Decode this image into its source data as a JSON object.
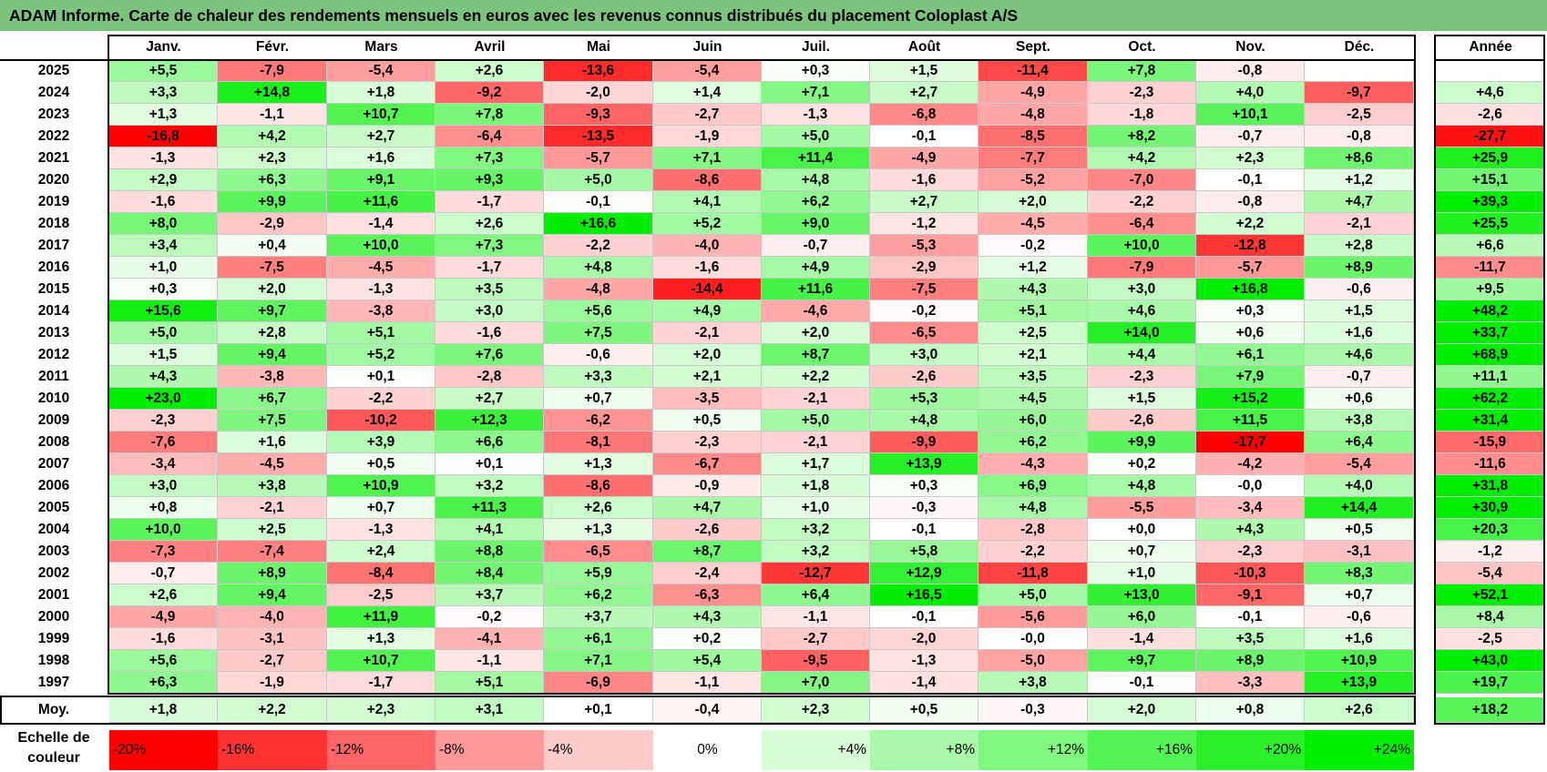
{
  "title": "ADAM Informe. Carte de chaleur des rendements mensuels en euros avec les revenus connus distribués du placement Coloplast A/S",
  "chart_data": {
    "type": "heatmap",
    "title": "ADAM Informe. Carte de chaleur des rendements mensuels en euros avec les revenus connus distribués du placement Coloplast A/S",
    "columns": [
      "Janv.",
      "Févr.",
      "Mars",
      "Avril",
      "Mai",
      "Juin",
      "Juil.",
      "Août",
      "Sept.",
      "Oct.",
      "Nov.",
      "Déc."
    ],
    "year_column_label": "Année",
    "rows": [
      {
        "year": "2025",
        "values": [
          "+5,5",
          "-7,9",
          "-5,4",
          "+2,6",
          "-13,6",
          "-5,4",
          "+0,3",
          "+1,5",
          "-11,4",
          "+7,8",
          "-0,8",
          ""
        ],
        "annual": ""
      },
      {
        "year": "2024",
        "values": [
          "+3,3",
          "+14,8",
          "+1,8",
          "-9,2",
          "-2,0",
          "+1,4",
          "+7,1",
          "+2,7",
          "-4,9",
          "-2,3",
          "+4,0",
          "-9,7"
        ],
        "annual": "+4,6"
      },
      {
        "year": "2023",
        "values": [
          "+1,3",
          "-1,1",
          "+10,7",
          "+7,8",
          "-9,3",
          "-2,7",
          "-1,3",
          "-6,8",
          "-4,8",
          "-1,8",
          "+10,1",
          "-2,5"
        ],
        "annual": "-2,6"
      },
      {
        "year": "2022",
        "values": [
          "-16,8",
          "+4,2",
          "+2,7",
          "-6,4",
          "-13,5",
          "-1,9",
          "+5,0",
          "-0,1",
          "-8,5",
          "+8,2",
          "-0,7",
          "-0,8"
        ],
        "annual": "-27,7"
      },
      {
        "year": "2021",
        "values": [
          "-1,3",
          "+2,3",
          "+1,6",
          "+7,3",
          "-5,7",
          "+7,1",
          "+11,4",
          "-4,9",
          "-7,7",
          "+4,2",
          "+2,3",
          "+8,6"
        ],
        "annual": "+25,9"
      },
      {
        "year": "2020",
        "values": [
          "+2,9",
          "+6,3",
          "+9,1",
          "+9,3",
          "+5,0",
          "-8,6",
          "+4,8",
          "-1,6",
          "-5,2",
          "-7,0",
          "-0,1",
          "+1,2"
        ],
        "annual": "+15,1"
      },
      {
        "year": "2019",
        "values": [
          "-1,6",
          "+9,9",
          "+11,6",
          "-1,7",
          "-0,1",
          "+4,1",
          "+6,2",
          "+2,7",
          "+2,0",
          "-2,2",
          "-0,8",
          "+4,7"
        ],
        "annual": "+39,3"
      },
      {
        "year": "2018",
        "values": [
          "+8,0",
          "-2,9",
          "-1,4",
          "+2,6",
          "+16,6",
          "+5,2",
          "+9,0",
          "-1,2",
          "-4,5",
          "-6,4",
          "+2,2",
          "-2,1"
        ],
        "annual": "+25,5"
      },
      {
        "year": "2017",
        "values": [
          "+3,4",
          "+0,4",
          "+10,0",
          "+7,3",
          "-2,2",
          "-4,0",
          "-0,7",
          "-5,3",
          "-0,2",
          "+10,0",
          "-12,8",
          "+2,8"
        ],
        "annual": "+6,6"
      },
      {
        "year": "2016",
        "values": [
          "+1,0",
          "-7,5",
          "-4,5",
          "-1,7",
          "+4,8",
          "-1,6",
          "+4,9",
          "-2,9",
          "+1,2",
          "-7,9",
          "-5,7",
          "+8,9"
        ],
        "annual": "-11,7"
      },
      {
        "year": "2015",
        "values": [
          "+0,3",
          "+2,0",
          "-1,3",
          "+3,5",
          "-4,8",
          "-14,4",
          "+11,6",
          "-7,5",
          "+4,3",
          "+3,0",
          "+16,8",
          "-0,6"
        ],
        "annual": "+9,5"
      },
      {
        "year": "2014",
        "values": [
          "+15,6",
          "+9,7",
          "-3,8",
          "+3,0",
          "+5,6",
          "+4,9",
          "-4,6",
          "-0,2",
          "+5,1",
          "+4,6",
          "+0,3",
          "+1,5"
        ],
        "annual": "+48,2"
      },
      {
        "year": "2013",
        "values": [
          "+5,0",
          "+2,8",
          "+5,1",
          "-1,6",
          "+7,5",
          "-2,1",
          "+2,0",
          "-6,5",
          "+2,5",
          "+14,0",
          "+0,6",
          "+1,6"
        ],
        "annual": "+33,7"
      },
      {
        "year": "2012",
        "values": [
          "+1,5",
          "+9,4",
          "+5,2",
          "+7,6",
          "-0,6",
          "+2,0",
          "+8,7",
          "+3,0",
          "+2,1",
          "+4,4",
          "+6,1",
          "+4,6"
        ],
        "annual": "+68,9"
      },
      {
        "year": "2011",
        "values": [
          "+4,3",
          "-3,8",
          "+0,1",
          "-2,8",
          "+3,3",
          "+2,1",
          "+2,2",
          "-2,6",
          "+3,5",
          "-2,3",
          "+7,9",
          "-0,7"
        ],
        "annual": "+11,1"
      },
      {
        "year": "2010",
        "values": [
          "+23,0",
          "+6,7",
          "-2,2",
          "+2,7",
          "+0,7",
          "-3,5",
          "-2,1",
          "+5,3",
          "+4,5",
          "+1,5",
          "+15,2",
          "+0,6"
        ],
        "annual": "+62,2"
      },
      {
        "year": "2009",
        "values": [
          "-2,3",
          "+7,5",
          "-10,2",
          "+12,3",
          "-6,2",
          "+0,5",
          "+5,0",
          "+4,8",
          "+6,0",
          "-2,6",
          "+11,5",
          "+3,8"
        ],
        "annual": "+31,4"
      },
      {
        "year": "2008",
        "values": [
          "-7,6",
          "+1,6",
          "+3,9",
          "+6,6",
          "-8,1",
          "-2,3",
          "-2,1",
          "-9,9",
          "+6,2",
          "+9,9",
          "-17,7",
          "+6,4"
        ],
        "annual": "-15,9"
      },
      {
        "year": "2007",
        "values": [
          "-3,4",
          "-4,5",
          "+0,5",
          "+0,1",
          "+1,3",
          "-6,7",
          "+1,7",
          "+13,9",
          "-4,3",
          "+0,2",
          "-4,2",
          "-5,4"
        ],
        "annual": "-11,6"
      },
      {
        "year": "2006",
        "values": [
          "+3,0",
          "+3,8",
          "+10,9",
          "+3,2",
          "-8,6",
          "-0,9",
          "+1,8",
          "+0,3",
          "+6,9",
          "+4,8",
          "-0,0",
          "+4,0"
        ],
        "annual": "+31,8"
      },
      {
        "year": "2005",
        "values": [
          "+0,8",
          "-2,1",
          "+0,7",
          "+11,3",
          "+2,6",
          "+4,7",
          "+1,0",
          "-0,3",
          "+4,8",
          "-5,5",
          "-3,4",
          "+14,4"
        ],
        "annual": "+30,9"
      },
      {
        "year": "2004",
        "values": [
          "+10,0",
          "+2,5",
          "-1,3",
          "+4,1",
          "+1,3",
          "-2,6",
          "+3,2",
          "-0,1",
          "-2,8",
          "+0,0",
          "+4,3",
          "+0,5"
        ],
        "annual": "+20,3"
      },
      {
        "year": "2003",
        "values": [
          "-7,3",
          "-7,4",
          "+2,4",
          "+8,8",
          "-6,5",
          "+8,7",
          "+3,2",
          "+5,8",
          "-2,2",
          "+0,7",
          "-2,3",
          "-3,1"
        ],
        "annual": "-1,2"
      },
      {
        "year": "2002",
        "values": [
          "-0,7",
          "+8,9",
          "-8,4",
          "+8,4",
          "+5,9",
          "-2,4",
          "-12,7",
          "+12,9",
          "-11,8",
          "+1,0",
          "-10,3",
          "+8,3"
        ],
        "annual": "-5,4"
      },
      {
        "year": "2001",
        "values": [
          "+2,6",
          "+9,4",
          "-2,5",
          "+3,7",
          "+6,2",
          "-6,3",
          "+6,4",
          "+16,5",
          "+5,0",
          "+13,0",
          "-9,1",
          "+0,7"
        ],
        "annual": "+52,1"
      },
      {
        "year": "2000",
        "values": [
          "-4,9",
          "-4,0",
          "+11,9",
          "-0,2",
          "+3,7",
          "+4,3",
          "-1,1",
          "-0,1",
          "-5,6",
          "+6,0",
          "-0,1",
          "-0,6"
        ],
        "annual": "+8,4"
      },
      {
        "year": "1999",
        "values": [
          "-1,6",
          "-3,1",
          "+1,3",
          "-4,1",
          "+6,1",
          "+0,2",
          "-2,7",
          "-2,0",
          "-0,0",
          "-1,4",
          "+3,5",
          "+1,6"
        ],
        "annual": "-2,5"
      },
      {
        "year": "1998",
        "values": [
          "+5,6",
          "-2,7",
          "+10,7",
          "-1,1",
          "+7,1",
          "+5,4",
          "-9,5",
          "-1,3",
          "-5,0",
          "+9,7",
          "+8,9",
          "+10,9"
        ],
        "annual": "+43,0"
      },
      {
        "year": "1997",
        "values": [
          "+6,3",
          "-1,9",
          "-1,7",
          "+5,1",
          "-6,9",
          "-1,1",
          "+7,0",
          "-1,4",
          "+3,8",
          "-0,1",
          "-3,3",
          "+13,9"
        ],
        "annual": "+19,7"
      }
    ],
    "average_row": {
      "label": "Moy.",
      "values": [
        "+1,8",
        "+2,2",
        "+2,3",
        "+3,1",
        "+0,1",
        "-0,4",
        "+2,3",
        "+0,5",
        "-0,3",
        "+2,0",
        "+0,8",
        "+2,6"
      ],
      "annual": "+18,2"
    },
    "scale": {
      "label": "Echelle de couleur",
      "steps": [
        {
          "label": "-20%",
          "value": -20
        },
        {
          "label": "-16%",
          "value": -16
        },
        {
          "label": "-12%",
          "value": -12
        },
        {
          "label": "-8%",
          "value": -8
        },
        {
          "label": "-4%",
          "value": -4
        },
        {
          "label": "0%",
          "value": 0
        },
        {
          "label": "+4%",
          "value": 4
        },
        {
          "label": "+8%",
          "value": 8
        },
        {
          "label": "+12%",
          "value": 12
        },
        {
          "label": "+16%",
          "value": 16
        },
        {
          "label": "+20%",
          "value": 20
        },
        {
          "label": "+24%",
          "value": 24
        }
      ]
    },
    "colors": {
      "negative_max": "#ff0000",
      "neutral": "#ffffff",
      "positive_max": "#00ee00",
      "title_bar": "#7cc47e"
    }
  }
}
